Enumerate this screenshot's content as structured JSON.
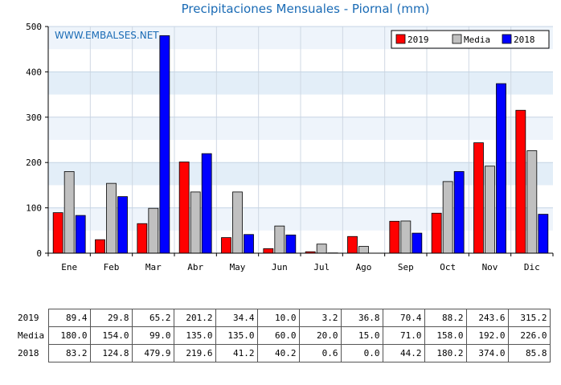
{
  "chart_data": {
    "type": "bar",
    "title": "Precipitaciones Mensuales - Piornal (mm)",
    "watermark": "WWW.EMBALSES.NET",
    "categories": [
      "Ene",
      "Feb",
      "Mar",
      "Abr",
      "May",
      "Jun",
      "Jul",
      "Ago",
      "Sep",
      "Oct",
      "Nov",
      "Dic"
    ],
    "series": [
      {
        "name": "2019",
        "color": "#ff0000",
        "values": [
          89.4,
          29.8,
          65.2,
          201.2,
          34.4,
          10.0,
          3.2,
          36.8,
          70.4,
          88.2,
          243.6,
          315.2
        ]
      },
      {
        "name": "Media",
        "color": "#c0c0c0",
        "values": [
          180.0,
          154.0,
          99.0,
          135.0,
          135.0,
          60.0,
          20.0,
          15.0,
          71.0,
          158.0,
          192.0,
          226.0
        ]
      },
      {
        "name": "2018",
        "color": "#0000ff",
        "values": [
          83.2,
          124.8,
          479.9,
          219.6,
          41.2,
          40.2,
          0.6,
          0.0,
          44.2,
          180.2,
          374.0,
          85.8
        ]
      }
    ],
    "yticks": [
      0,
      100,
      200,
      300,
      400,
      500
    ],
    "ylim": [
      0,
      500
    ],
    "grid": true,
    "legend": "top-right"
  },
  "table": {
    "rows": [
      {
        "label": "2019",
        "values": [
          "89.4",
          "29.8",
          "65.2",
          "201.2",
          "34.4",
          "10.0",
          "3.2",
          "36.8",
          "70.4",
          "88.2",
          "243.6",
          "315.2"
        ]
      },
      {
        "label": "Media",
        "values": [
          "180.0",
          "154.0",
          "99.0",
          "135.0",
          "135.0",
          "60.0",
          "20.0",
          "15.0",
          "71.0",
          "158.0",
          "192.0",
          "226.0"
        ]
      },
      {
        "label": "2018",
        "values": [
          "83.2",
          "124.8",
          "479.9",
          "219.6",
          "41.2",
          "40.2",
          "0.6",
          "0.0",
          "44.2",
          "180.2",
          "374.0",
          "85.8"
        ]
      }
    ]
  }
}
